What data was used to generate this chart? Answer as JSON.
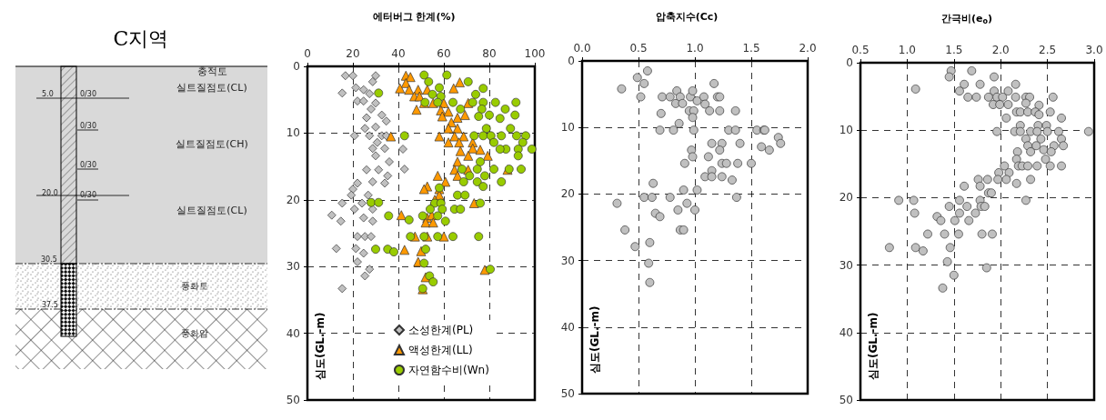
{
  "chart_data": [
    {
      "type": "other",
      "title": "C지역",
      "annotations": [
        "충적토",
        "실트질점토(CL)",
        "5.0",
        "0/30",
        "0/30",
        "실트질점토(CH)",
        "0/30",
        "20.0",
        "0/30",
        "실트질점토(CL)",
        "30.5",
        "풍화토",
        "37.5",
        "풍화암"
      ]
    },
    {
      "type": "scatter",
      "title": "에터버그 한계(%)",
      "ylabel": "심도(GL.-m)",
      "xlim": [
        0,
        100
      ],
      "xticks": [
        0,
        20,
        40,
        60,
        80,
        100
      ],
      "ylim": [
        50,
        0
      ],
      "yticks": [
        0,
        10,
        20,
        30,
        40,
        50
      ],
      "grid": true,
      "legend": "bottom",
      "series": [
        {
          "name": "소성한계(PL)",
          "color": "#c0c0c0",
          "marker": "diamond",
          "x": [
            16.7,
            20,
            30,
            28.7,
            15.3,
            21.3,
            24.7,
            27.3,
            22,
            24.7,
            30,
            28,
            32.7,
            26,
            34.7,
            30,
            25.3,
            20.7,
            27.3,
            32.7,
            34.7,
            30.7,
            28.7,
            34,
            42,
            30,
            36,
            26,
            31.3,
            42.7,
            35.3,
            28.7,
            34,
            22,
            20,
            19.3,
            26.7,
            15.3,
            24,
            28.7,
            10.7,
            20.7,
            14.7,
            24.7,
            28.7,
            22,
            25.3,
            28,
            12.7,
            21.3,
            24.7,
            22,
            27.3,
            25.3,
            15.3
          ],
          "values": [
            1.4,
            1.4,
            1.4,
            2.3,
            4,
            3.2,
            3.5,
            4.1,
            5.2,
            5.2,
            5.5,
            6.4,
            7.3,
            7.7,
            8.2,
            9.1,
            9.3,
            10.4,
            10.4,
            10.4,
            10.4,
            11.4,
            12.3,
            12.3,
            12.4,
            13.4,
            14.3,
            15.5,
            15.5,
            15.4,
            16.4,
            17.3,
            17.5,
            17.5,
            18.4,
            19.3,
            19.3,
            20.5,
            20.5,
            21.4,
            22.3,
            21.4,
            23.2,
            22.7,
            23.2,
            25.5,
            25.5,
            25.5,
            27.3,
            27.3,
            28,
            29.3,
            30.4,
            31.4,
            33.3
          ]
        },
        {
          "name": "액성한계(LL)",
          "color": "#ff9900",
          "marker": "triangle",
          "x": [
            43.3,
            45.3,
            43.3,
            40.7,
            44.7,
            48.7,
            47,
            49.3,
            52.7,
            64.3,
            67,
            51.3,
            55.3,
            60,
            48,
            58.7,
            62,
            59.3,
            66,
            69.3,
            70.7,
            63.3,
            62,
            66,
            36.7,
            58,
            64.7,
            68.7,
            62,
            66.7,
            72.7,
            72.7,
            76,
            67.3,
            70.7,
            79.3,
            66,
            64.7,
            70.7,
            88,
            66,
            57.3,
            60.7,
            52.7,
            51.3,
            58,
            58,
            56,
            73.3,
            41.3,
            52.7,
            54.7,
            52,
            55.3,
            47.3,
            52.7,
            60,
            42.7,
            50,
            48.7,
            78,
            52,
            50.7
          ],
          "values": [
            1.4,
            1.6,
            2.5,
            3.3,
            3.5,
            3.5,
            4.5,
            4.5,
            3.5,
            3.3,
            2.4,
            5.5,
            5.5,
            5.5,
            6.5,
            6.6,
            6.8,
            7.5,
            7.7,
            7.3,
            5.5,
            8.4,
            9.3,
            9.3,
            10.5,
            10.5,
            10.5,
            10.5,
            11.4,
            11.4,
            11.4,
            12.3,
            12.5,
            12.7,
            13.4,
            13.4,
            14.3,
            15.5,
            15.5,
            15.5,
            16.4,
            16.4,
            17.3,
            18,
            18.4,
            18.4,
            19.3,
            20,
            20.5,
            22.3,
            22.7,
            22.3,
            23.4,
            23.4,
            25.5,
            25.5,
            25.5,
            27.5,
            27.7,
            29.3,
            30.5,
            31.6,
            33.4
          ]
        },
        {
          "name": "자연함수비(Wn)",
          "color": "#99cc00",
          "marker": "circle",
          "x": [
            31.3,
            51.3,
            61.3,
            53.3,
            58,
            70.7,
            77.3,
            55,
            58.7,
            74,
            51.7,
            57.3,
            64,
            72.7,
            77.3,
            82.7,
            91.7,
            67.3,
            76.7,
            87,
            75.3,
            80,
            91.3,
            84.7,
            78.7,
            89.3,
            42.7,
            73.3,
            77.3,
            80.7,
            85.3,
            92,
            96,
            82,
            94.7,
            98.7,
            92.7,
            87.3,
            84.7,
            92.7,
            76,
            68,
            74.7,
            82,
            88.7,
            94,
            78,
            71.3,
            68.7,
            74.7,
            77.3,
            85.3,
            58,
            66,
            69.3,
            56,
            58.7,
            76,
            28,
            31.3,
            64.7,
            67.3,
            54,
            59.3,
            35.7,
            44.7,
            50.7,
            57.3,
            60.7,
            45.3,
            51.3,
            57.3,
            64,
            75.3,
            30,
            35.3,
            38,
            52,
            51.3,
            80.4,
            53.7,
            55.3,
            50.7
          ],
          "values": [
            4,
            1.3,
            1.3,
            2.3,
            3.2,
            2.3,
            3.3,
            4.2,
            4.5,
            4.2,
            5.4,
            5.4,
            5.4,
            5.4,
            5.4,
            5.4,
            5.4,
            6.4,
            6.4,
            6.4,
            7.5,
            7.3,
            7.3,
            7.8,
            9.3,
            9.3,
            10.4,
            10.4,
            10.4,
            10.4,
            10.4,
            10.4,
            10.4,
            11.4,
            11.4,
            12.4,
            12.4,
            12.4,
            12.4,
            13.4,
            14.3,
            15.4,
            15.4,
            15.4,
            15.4,
            15.4,
            16.4,
            16.4,
            17.3,
            17.3,
            18,
            17.3,
            18.2,
            19.3,
            19.3,
            20.5,
            20.5,
            20.5,
            20.4,
            20.4,
            21.4,
            21.4,
            21.4,
            21.4,
            22.4,
            23,
            22.4,
            22.4,
            23.2,
            25.5,
            25.5,
            25.5,
            25.5,
            25.5,
            27.4,
            27.4,
            27.8,
            27.4,
            29.5,
            30.4,
            31.4,
            32.3,
            33.3
          ]
        }
      ]
    },
    {
      "type": "scatter",
      "title": "압축지수(Cc)",
      "ylabel": "심도(GL.-m)",
      "xlim": [
        0,
        2
      ],
      "xticks": [
        {
          "value": 0,
          "label": "0.0"
        },
        {
          "value": 0.5,
          "label": "0.5"
        },
        {
          "value": 1,
          "label": "1.0"
        },
        {
          "value": 1.5,
          "label": "1.5"
        },
        {
          "value": 2,
          "label": "2.0"
        }
      ],
      "ylim": [
        50,
        0
      ],
      "yticks": [
        0,
        10,
        20,
        30,
        40,
        50
      ],
      "grid": true,
      "marker": "circle",
      "series": [
        {
          "color": "#c0c0c0",
          "x": [
            0.58,
            0.49,
            0.55,
            0.35,
            0.52,
            0.71,
            0.78,
            0.84,
            0.83,
            0.87,
            0.89,
            0.96,
            0.98,
            1.02,
            1.08,
            1.09,
            1.17,
            1.2,
            1.22,
            0.7,
            0.95,
            0.99,
            1.13,
            1.22,
            1.36,
            0.86,
            0.98,
            0.69,
            0.81,
            0.99,
            1.3,
            1.36,
            1.55,
            1.61,
            1.62,
            1.74,
            1.76,
            1.15,
            1.24,
            1.4,
            1.59,
            1.66,
            0.97,
            1.22,
            0.98,
            1.12,
            0.91,
            1.24,
            1.28,
            1.38,
            1.5,
            1.15,
            1.09,
            1.15,
            1.24,
            1.33,
            0.63,
            0.9,
            1.02,
            0.55,
            0.62,
            0.78,
            1.37,
            0.31,
            0.93,
            0.85,
            1,
            0.65,
            0.69,
            0.38,
            0.87,
            0.9,
            0.47,
            0.6,
            0.59,
            0.6
          ],
          "values": [
            1.5,
            2.5,
            3.4,
            4.2,
            5.4,
            5.4,
            5.4,
            4.5,
            6.4,
            5.4,
            6.4,
            5.4,
            4.5,
            6,
            5.4,
            6.5,
            3.4,
            5.4,
            5.4,
            7.9,
            7.5,
            7.5,
            7.5,
            7.5,
            7.5,
            9.4,
            8.5,
            10.4,
            10.4,
            10.4,
            10.4,
            10.4,
            10.4,
            10.4,
            10.4,
            11.5,
            12.4,
            12.4,
            12.4,
            12.4,
            12.9,
            13.4,
            13.4,
            13.4,
            14.4,
            14.4,
            15.4,
            15.4,
            15.4,
            15.4,
            15.4,
            16.5,
            17.4,
            17.4,
            17.4,
            17.9,
            18.4,
            19.4,
            19.4,
            20.5,
            20.5,
            20.5,
            20.5,
            21.4,
            21.4,
            22.4,
            22.4,
            22.9,
            23.4,
            25.4,
            25.4,
            25.4,
            27.9,
            27.3,
            30.4,
            33.3
          ]
        }
      ]
    },
    {
      "type": "scatter",
      "title": "간극비(e$_{o}$)",
      "ylabel": "심도(GL.-m)",
      "xlim": [
        0.5,
        3
      ],
      "xticks": [
        0.5,
        {
          "value": 1,
          "label": "1.0"
        },
        1.5,
        {
          "value": 2,
          "label": "2.0"
        },
        2.5,
        {
          "value": 3,
          "label": "3.0"
        }
      ],
      "ylim": [
        50,
        0
      ],
      "yticks": [
        0,
        10,
        20,
        30,
        40,
        50
      ],
      "grid": true,
      "marker": "circle",
      "series": [
        {
          "color": "#c0c0c0",
          "x": [
            1.47,
            1.45,
            1.69,
            1.93,
            1.09,
            1.61,
            1.78,
            2.16,
            1.56,
            1.65,
            1.74,
            1.87,
            1.93,
            1.96,
            2.02,
            2.08,
            2.16,
            2.27,
            2.31,
            2.56,
            1.92,
            1.99,
            2.08,
            2.27,
            2.41,
            2.17,
            2.21,
            2.29,
            2.37,
            2.41,
            2.53,
            2.06,
            2.65,
            2.21,
            2.4,
            2.49,
            1.96,
            2.15,
            2.21,
            2.32,
            2.39,
            2.5,
            2.62,
            2.94,
            2.27,
            2.43,
            2.65,
            2.29,
            2.38,
            2.57,
            2.67,
            2.18,
            2.32,
            2.46,
            2.54,
            2.17,
            2.48,
            2.19,
            2.23,
            2.29,
            2.39,
            2.53,
            2.65,
            2.04,
            1.98,
            2.09,
            1.97,
            2.06,
            2.32,
            1.76,
            1.86,
            2.17,
            1.61,
            1.78,
            1.87,
            1.9,
            0.91,
            1.07,
            1.56,
            1.78,
            2.27,
            1.45,
            1.64,
            1.79,
            1.83,
            1.08,
            1.56,
            1.73,
            1.32,
            1.36,
            1.51,
            1.66,
            1.22,
            1.4,
            1.55,
            1.8,
            1.91,
            0.81,
            1.09,
            1.17,
            1.46,
            1.43,
            1.85,
            1.5,
            1.38
          ],
          "values": [
            1.2,
            2.1,
            1.2,
            2.1,
            3.9,
            3.2,
            3.2,
            3.2,
            4.2,
            5.1,
            5.1,
            5.1,
            4.2,
            5.1,
            5.1,
            4.2,
            5.1,
            5.1,
            5.1,
            5.1,
            6.2,
            6.2,
            6.2,
            6,
            6.3,
            7.3,
            7.3,
            7.3,
            7.3,
            7.7,
            7.3,
            8.2,
            8.2,
            9.3,
            9.3,
            9.3,
            10.2,
            10.2,
            10.2,
            10.2,
            10.2,
            10.2,
            10.2,
            10.2,
            11.3,
            11.3,
            11.3,
            12.3,
            12.3,
            12.3,
            12.3,
            13.2,
            13.2,
            12.9,
            13.2,
            14.3,
            14.3,
            15.3,
            15.3,
            15.3,
            15.3,
            15.3,
            15.3,
            15.3,
            16.3,
            16.3,
            17.3,
            17.3,
            17.3,
            17.3,
            17.3,
            17.9,
            18.3,
            18.3,
            19.3,
            19.3,
            20.4,
            20.4,
            20.4,
            20.4,
            20.4,
            21.3,
            21.3,
            21.3,
            21.3,
            22.3,
            22.3,
            22.3,
            22.8,
            23.4,
            23.4,
            23.4,
            25.4,
            25.4,
            25.4,
            25.4,
            25.4,
            27.4,
            27.4,
            27.9,
            27.4,
            29.5,
            30.4,
            31.5,
            33.4
          ]
        }
      ]
    }
  ]
}
